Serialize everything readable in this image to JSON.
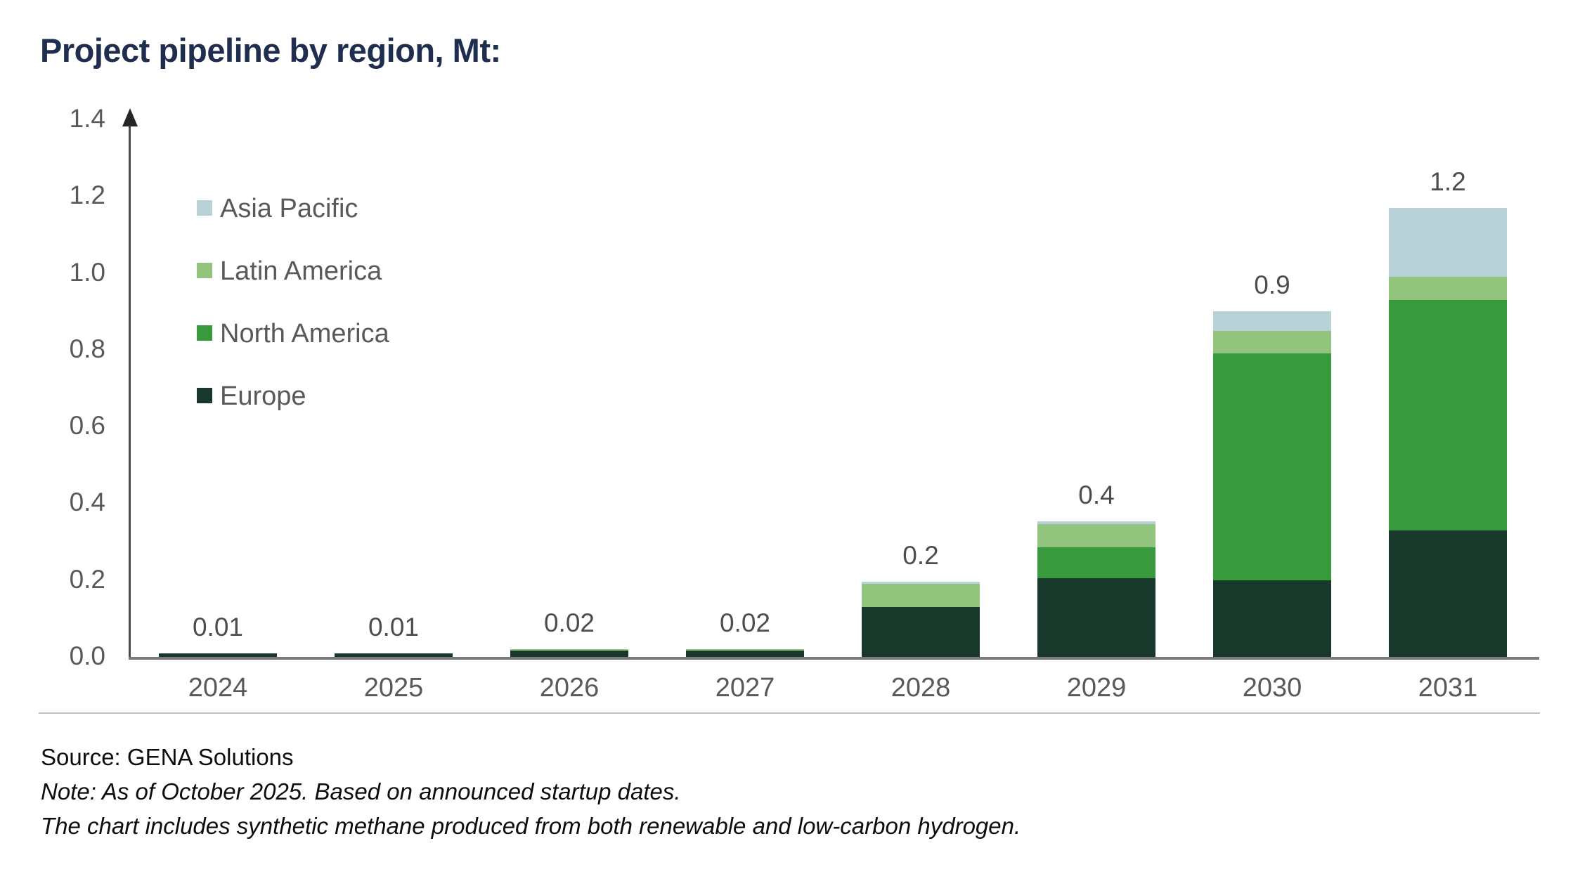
{
  "title": "Project pipeline by region, Mt:",
  "chart_data": {
    "type": "bar",
    "stacked": true,
    "unit": "Mt",
    "title": "Project pipeline by region, Mt:",
    "categories": [
      "2024",
      "2025",
      "2026",
      "2027",
      "2028",
      "2029",
      "2030",
      "2031"
    ],
    "series": [
      {
        "name": "Europe",
        "color": "#18382c",
        "values": [
          0.01,
          0.01,
          0.016,
          0.016,
          0.13,
          0.205,
          0.2,
          0.33
        ]
      },
      {
        "name": "North America",
        "color": "#38993d",
        "values": [
          0,
          0,
          0,
          0,
          0,
          0.08,
          0.59,
          0.6
        ]
      },
      {
        "name": "Latin America",
        "color": "#93c47d",
        "values": [
          0,
          0,
          0.004,
          0.004,
          0.06,
          0.06,
          0.06,
          0.06
        ]
      },
      {
        "name": "Asia Pacific",
        "color": "#b8d2d7",
        "values": [
          0,
          0,
          0,
          0,
          0.005,
          0.008,
          0.05,
          0.18
        ]
      }
    ],
    "totals_labels": [
      "0.01",
      "0.01",
      "0.02",
      "0.02",
      "0.2",
      "0.4",
      "0.9",
      "1.2"
    ],
    "y_axis": {
      "min": 0.0,
      "max": 1.4,
      "tick_step": 0.2,
      "tick_labels": [
        "0.0",
        "0.2",
        "0.4",
        "0.6",
        "0.8",
        "1.0",
        "1.2",
        "1.4"
      ]
    },
    "legend_order": [
      "Asia Pacific",
      "Latin America",
      "North America",
      "Europe"
    ],
    "legend_position": "upper-left",
    "grid": false
  },
  "footer": {
    "source": "Source: GENA Solutions",
    "note1": "Note: As of October 2025. Based on announced startup dates.",
    "note2": "The chart includes synthetic methane produced from both renewable and low-carbon hydrogen."
  }
}
